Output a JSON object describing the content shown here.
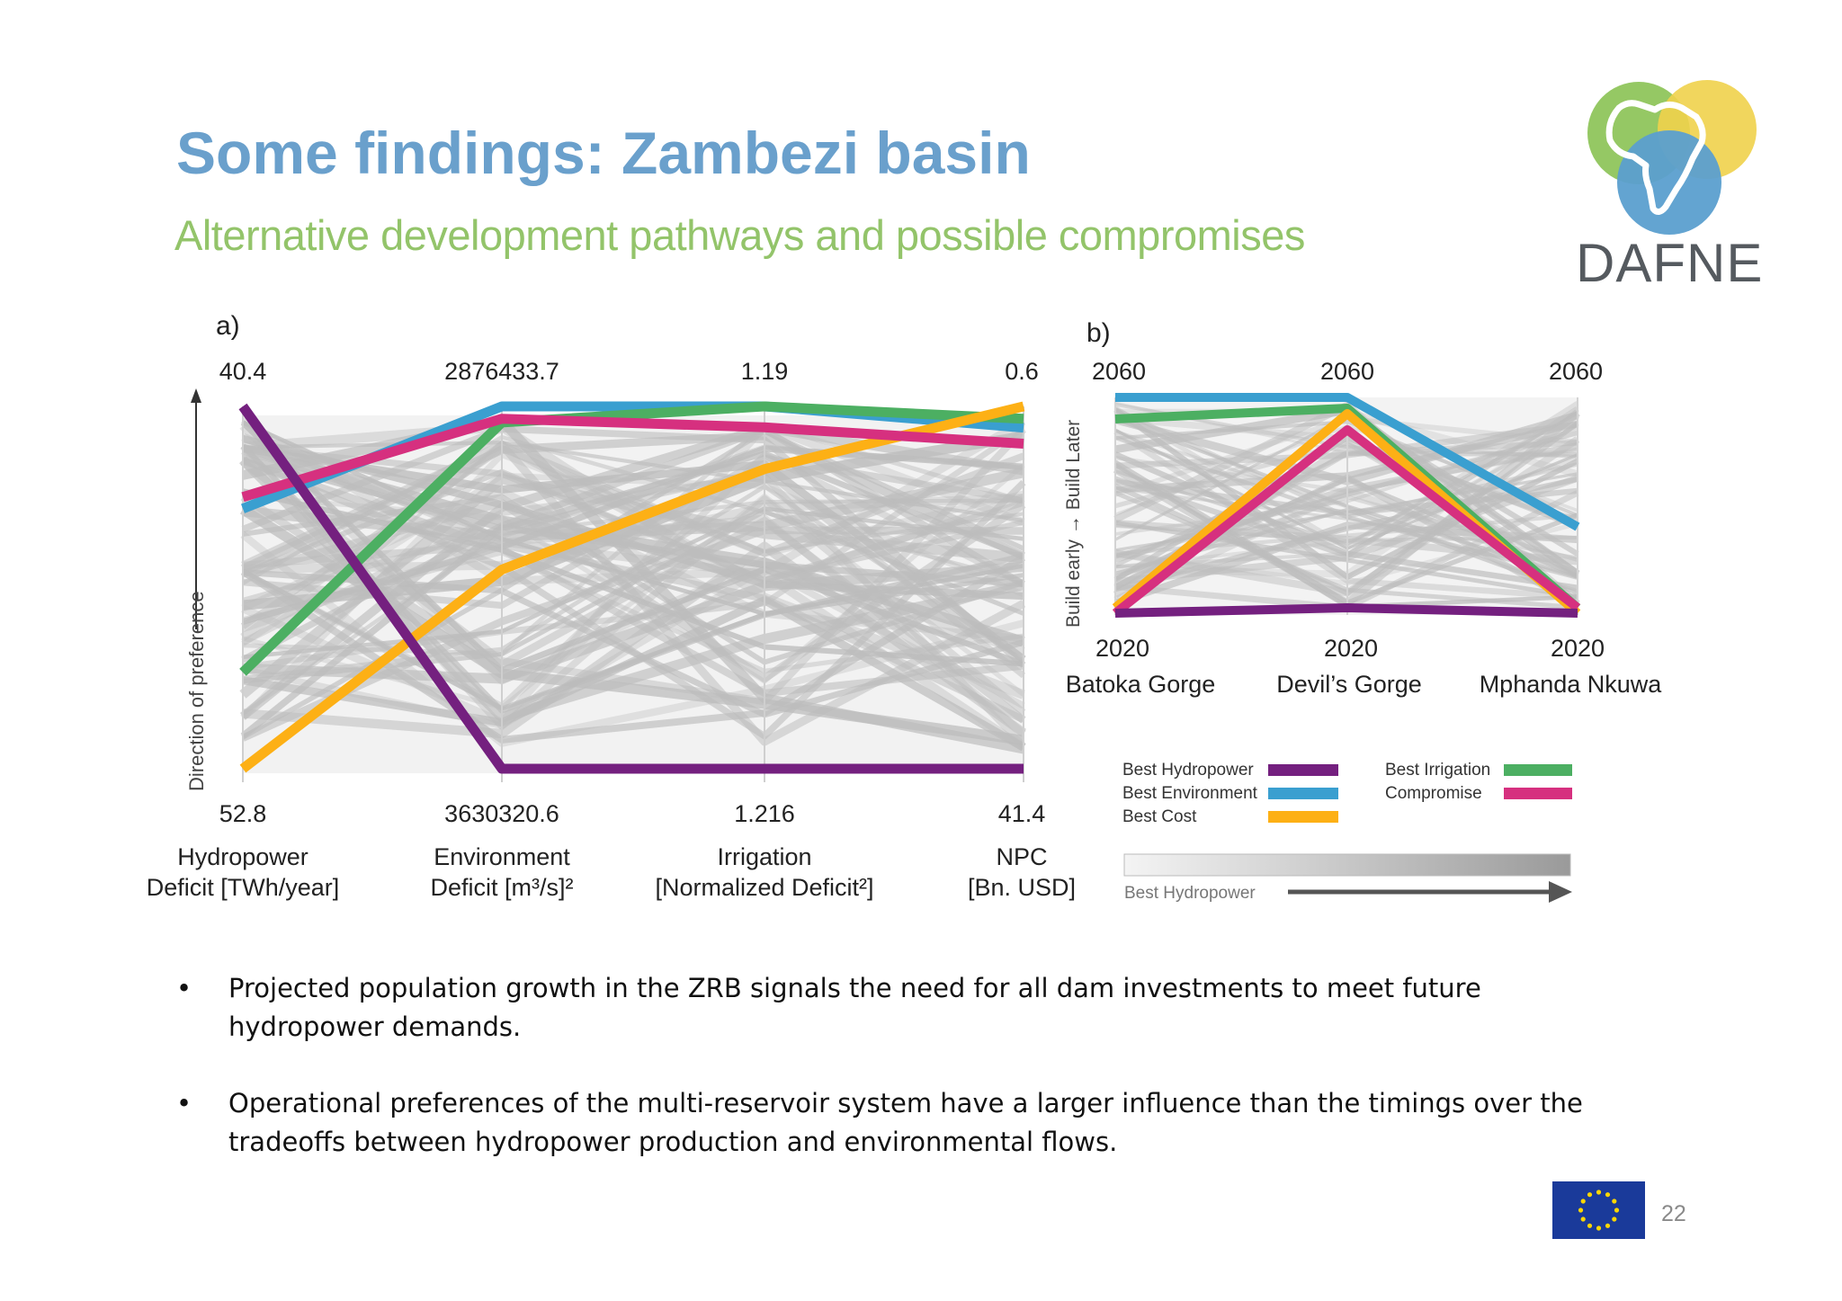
{
  "slide": {
    "title": "Some findings: Zambezi basin",
    "subtitle": "Alternative development pathways and possible compromises",
    "logo_text": "DAFNE",
    "page_number": "22",
    "bullets": [
      "Projected population growth in the ZRB signals the need for all dam investments to meet future hydropower demands.",
      "Operational preferences of the multi-reservoir system have a larger influence than the timings over the tradeoffs between hydropower production and environmental flows."
    ],
    "colors": {
      "title": "#6aa0cc",
      "subtitle": "#93c46a",
      "best_hydropower": "#74207f",
      "best_environment": "#3a9fd0",
      "best_cost": "#fdb015",
      "best_irrigation": "#4caf62",
      "compromise": "#d6307f",
      "other_solutions": "#bdbdbd"
    }
  },
  "chart_data": [
    {
      "type": "parallel-coordinates",
      "panel_label": "a)",
      "direction_label": "Direction of preference",
      "axes": [
        {
          "name": "Hydropower\nDeficit [TWh/year]",
          "label_line1": "Hydropower",
          "label_line2": "Deficit [TWh/year]",
          "top": "40.4",
          "bottom": "52.8"
        },
        {
          "name": "Environment\nDeficit [m³/s]²",
          "label_line1": "Environment",
          "label_line2": "Deficit [m³/s]²",
          "top": "2876433.7",
          "bottom": "3630320.6"
        },
        {
          "name": "Irrigation\n[Normalized Deficit²]",
          "label_line1": "Irrigation",
          "label_line2": "[Normalized Deficit²]",
          "top": "1.19",
          "bottom": "1.216"
        },
        {
          "name": "NPC\n[Bn. USD]",
          "label_line1": "NPC",
          "label_line2": "[Bn. USD]",
          "top": "0.6",
          "bottom": "41.4"
        }
      ],
      "series": [
        {
          "name": "Best Hydropower",
          "color": "#74207f",
          "values": [
            40.4,
            3630320.6,
            1.216,
            41.4
          ]
        },
        {
          "name": "Best Environment",
          "color": "#3a9fd0",
          "values": [
            43.9,
            2876433.7,
            1.19,
            3.0
          ]
        },
        {
          "name": "Best Cost",
          "color": "#fdb015",
          "values": [
            52.8,
            3216000,
            1.1945,
            0.6
          ]
        },
        {
          "name": "Best Irrigation",
          "color": "#4caf62",
          "values": [
            49.5,
            2910000,
            1.19,
            2.0
          ]
        },
        {
          "name": "Compromise",
          "color": "#d6307f",
          "values": [
            43.5,
            2902000,
            1.1915,
            4.8
          ]
        }
      ]
    },
    {
      "type": "parallel-coordinates",
      "panel_label": "b)",
      "direction_label": "Build early → Build Later",
      "axes": [
        {
          "name": "Batoka Gorge",
          "top": "2060",
          "bottom": "2020"
        },
        {
          "name": "Devil’s Gorge",
          "top": "2060",
          "bottom": "2020"
        },
        {
          "name": "Mphanda Nkuwa",
          "top": "2060",
          "bottom": "2020"
        }
      ],
      "series": [
        {
          "name": "Best Hydropower",
          "color": "#74207f",
          "values": [
            2020,
            2021,
            2020
          ]
        },
        {
          "name": "Best Environment",
          "color": "#3a9fd0",
          "values": [
            2060,
            2060,
            2036
          ]
        },
        {
          "name": "Best Cost",
          "color": "#fdb015",
          "values": [
            2021,
            2057,
            2020
          ]
        },
        {
          "name": "Best Irrigation",
          "color": "#4caf62",
          "values": [
            2056,
            2058,
            2021
          ]
        },
        {
          "name": "Compromise",
          "color": "#d6307f",
          "values": [
            2020,
            2054,
            2021
          ]
        }
      ],
      "legend": {
        "position": "bottom",
        "entries": [
          "Best Hydropower",
          "Best Environment",
          "Best Cost",
          "Best Irrigation",
          "Compromise"
        ],
        "gradient_label": "Best Hydropower"
      }
    }
  ]
}
